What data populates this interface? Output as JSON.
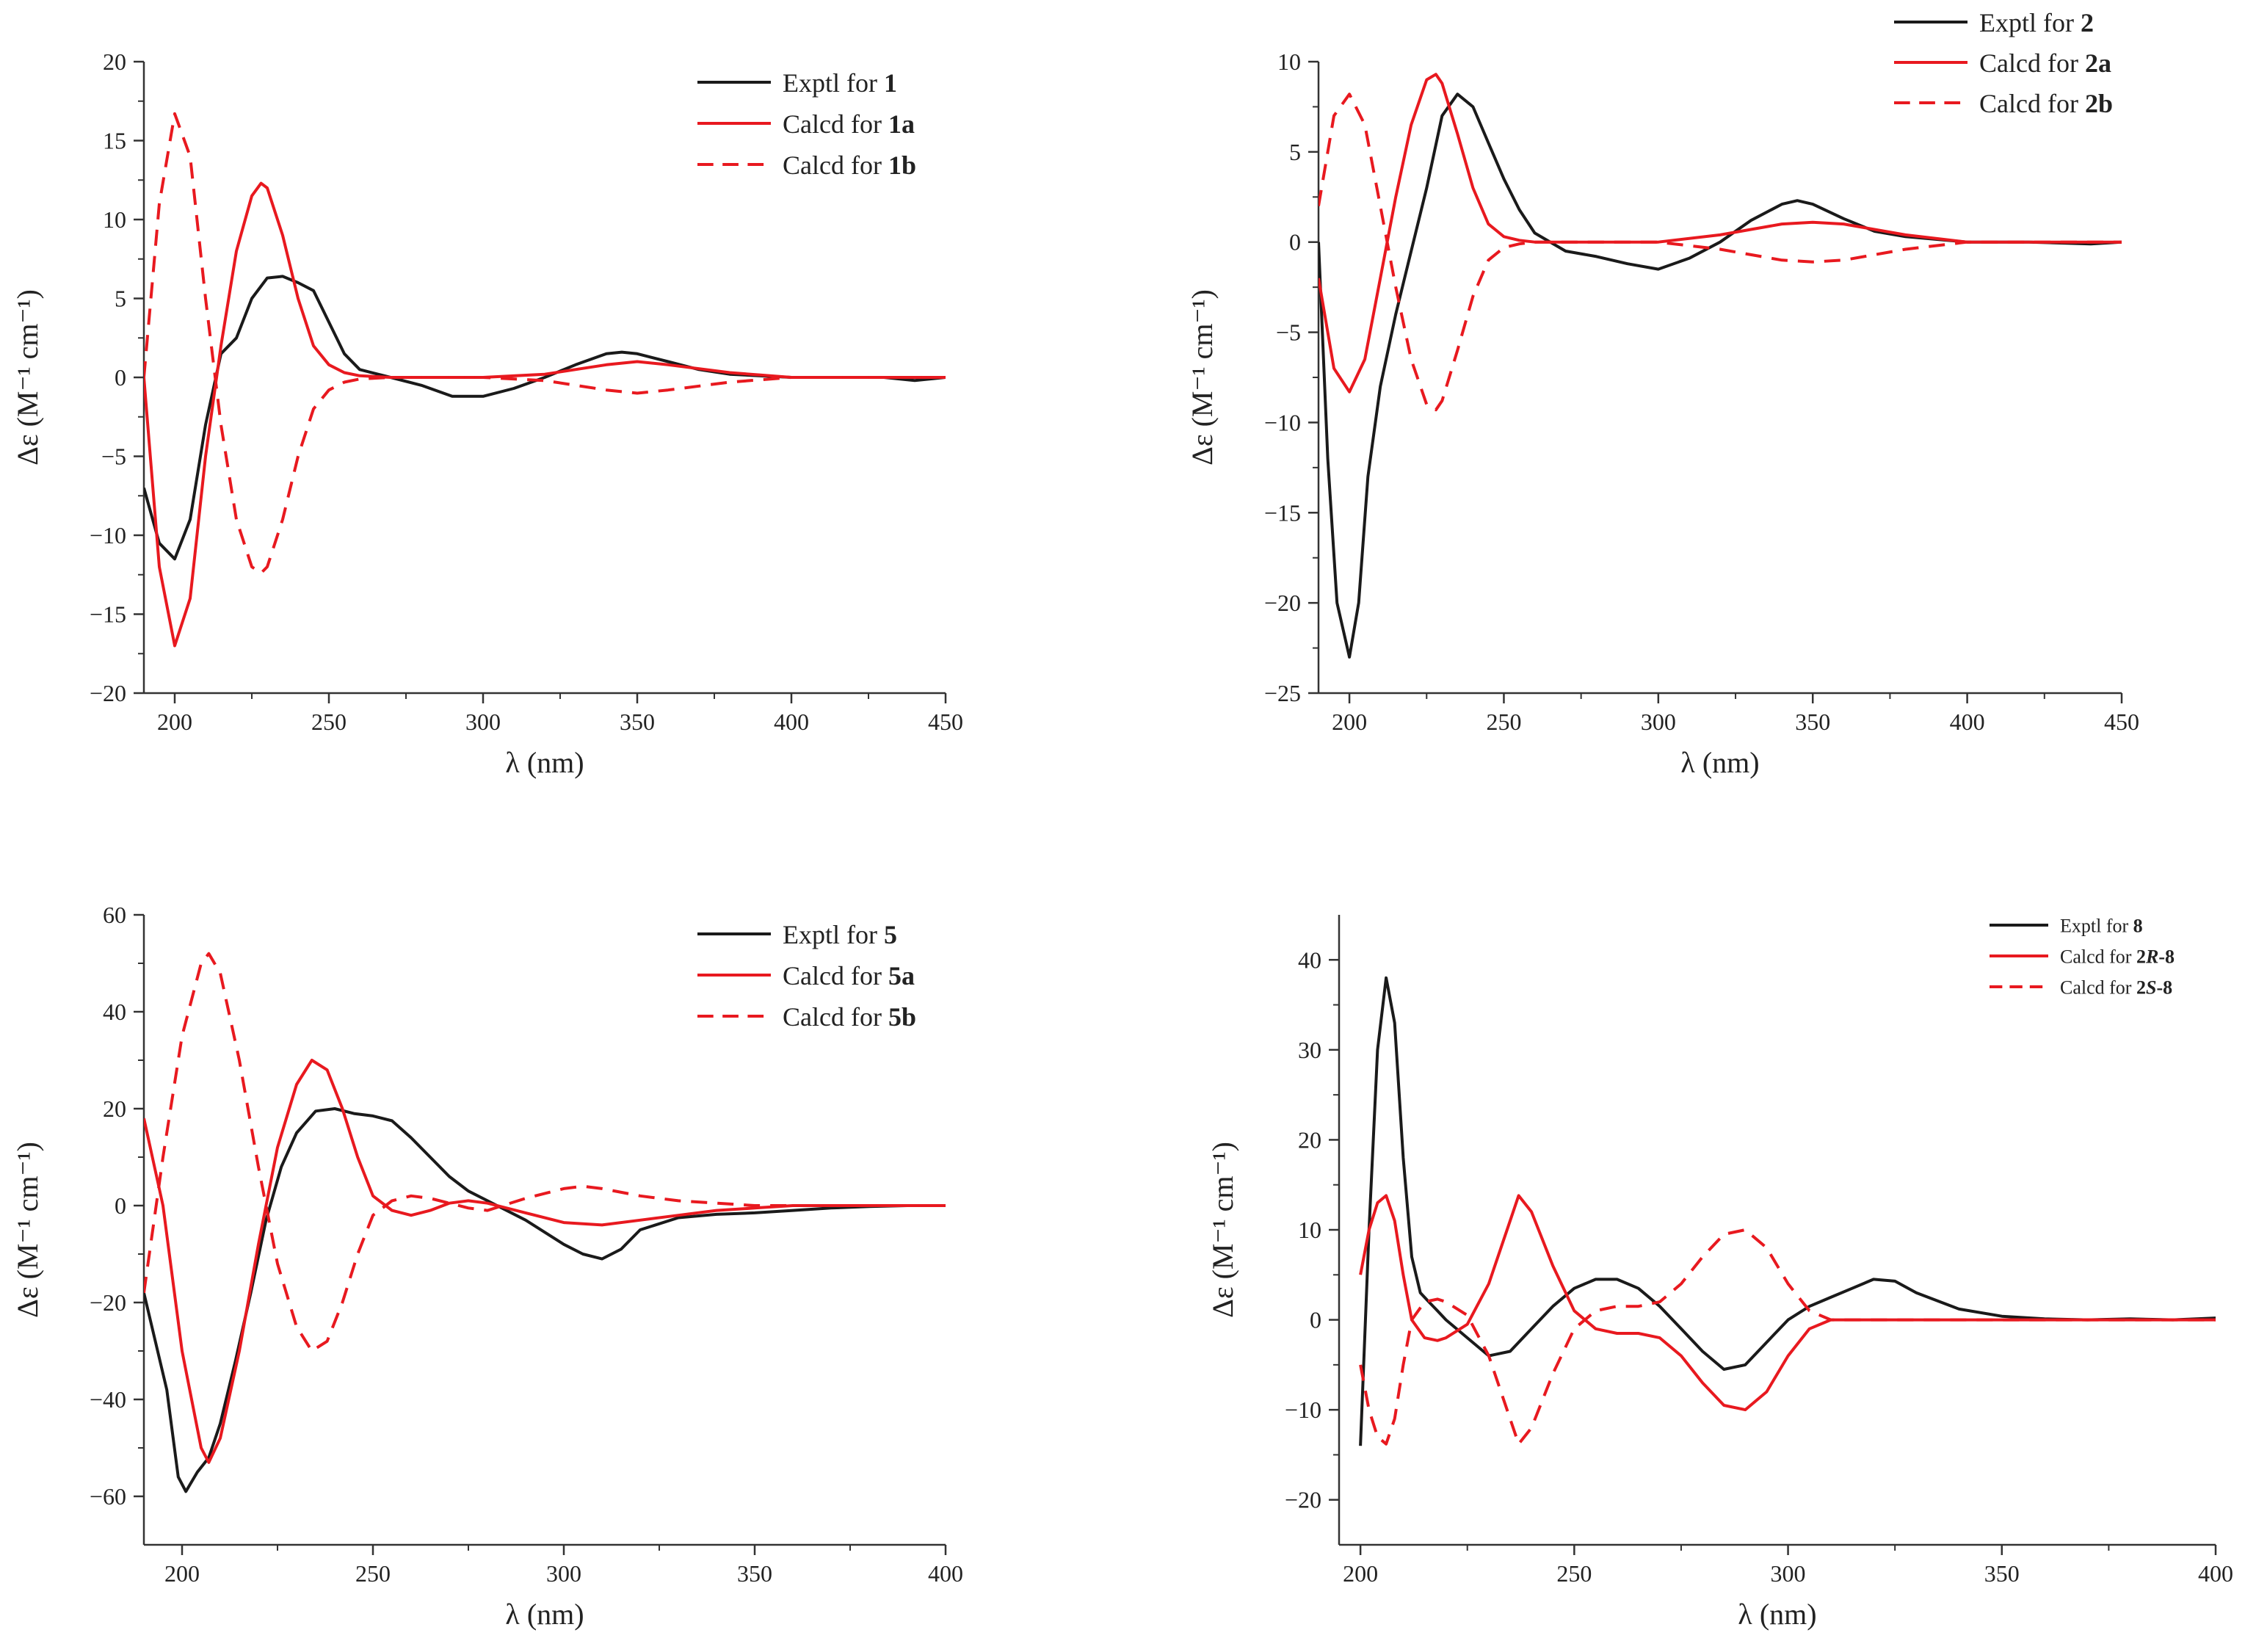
{
  "colors": {
    "exptl": "#1a1a1a",
    "calcd": "#e8191f",
    "axis": "#333333"
  },
  "chart_data": [
    {
      "type": "line",
      "xlabel": "λ (nm)",
      "ylabel": "Δε (M⁻¹ cm⁻¹)",
      "xlim": [
        190,
        450
      ],
      "ylim": [
        -20,
        20
      ],
      "xticks": [
        200,
        250,
        300,
        350,
        400,
        450
      ],
      "yticks": [
        -20,
        -15,
        -10,
        -5,
        0,
        5,
        10,
        15,
        20
      ],
      "legend_position": "top-right",
      "series": [
        {
          "name": "Exptl for ",
          "name_bold": "1",
          "style": "solid",
          "color": "exptl",
          "x": [
            190,
            195,
            200,
            205,
            210,
            215,
            220,
            225,
            230,
            235,
            240,
            245,
            250,
            255,
            260,
            270,
            280,
            290,
            300,
            310,
            320,
            330,
            340,
            345,
            350,
            360,
            370,
            380,
            400,
            420,
            430,
            440,
            450
          ],
          "y": [
            -7,
            -10.5,
            -11.5,
            -9,
            -3,
            1.5,
            2.5,
            5,
            6.3,
            6.4,
            6,
            5.5,
            3.5,
            1.5,
            0.5,
            0,
            -0.5,
            -1.2,
            -1.2,
            -0.7,
            0,
            0.8,
            1.5,
            1.6,
            1.5,
            1,
            0.5,
            0.2,
            0,
            0,
            0,
            -0.2,
            0
          ]
        },
        {
          "name": "Calcd for ",
          "name_bold": "1a",
          "style": "solid",
          "color": "calcd",
          "x": [
            190,
            195,
            200,
            205,
            210,
            215,
            220,
            225,
            228,
            230,
            235,
            240,
            245,
            250,
            255,
            260,
            270,
            280,
            300,
            320,
            340,
            350,
            360,
            380,
            400,
            420,
            450
          ],
          "y": [
            0,
            -12,
            -17,
            -14,
            -5,
            2,
            8,
            11.5,
            12.3,
            12,
            9,
            5,
            2,
            0.8,
            0.3,
            0.1,
            0,
            0,
            0,
            0.2,
            0.8,
            1,
            0.8,
            0.3,
            0,
            0,
            0
          ]
        },
        {
          "name": "Calcd for ",
          "name_bold": "1b",
          "style": "dashed",
          "color": "calcd",
          "x": [
            190,
            195,
            200,
            205,
            210,
            215,
            220,
            225,
            228,
            230,
            235,
            240,
            245,
            250,
            255,
            260,
            270,
            280,
            300,
            320,
            340,
            350,
            360,
            380,
            400,
            420,
            450
          ],
          "y": [
            0,
            11,
            16.7,
            14,
            5,
            -3,
            -9,
            -12,
            -12.4,
            -12,
            -9,
            -5,
            -2,
            -0.8,
            -0.3,
            -0.1,
            0,
            0,
            0,
            -0.2,
            -0.8,
            -1,
            -0.8,
            -0.3,
            0,
            0,
            0
          ]
        }
      ]
    },
    {
      "type": "line",
      "xlabel": "λ (nm)",
      "ylabel": "Δε (M⁻¹ cm⁻¹)",
      "xlim": [
        190,
        450
      ],
      "ylim": [
        -25,
        10
      ],
      "xticks": [
        200,
        250,
        300,
        350,
        400,
        450
      ],
      "yticks": [
        -25,
        -20,
        -15,
        -10,
        -5,
        0,
        5,
        10
      ],
      "legend_position": "top-right",
      "series": [
        {
          "name": "Exptl for ",
          "name_bold": "2",
          "style": "solid",
          "color": "exptl",
          "x": [
            190,
            193,
            196,
            200,
            203,
            206,
            210,
            215,
            220,
            225,
            230,
            235,
            240,
            245,
            250,
            255,
            260,
            270,
            280,
            290,
            300,
            310,
            320,
            330,
            340,
            345,
            350,
            360,
            370,
            380,
            400,
            420,
            440,
            450
          ],
          "y": [
            0,
            -12,
            -20,
            -23,
            -20,
            -13,
            -8,
            -4,
            -0.5,
            3,
            7,
            8.2,
            7.5,
            5.5,
            3.5,
            1.8,
            0.5,
            -0.5,
            -0.8,
            -1.2,
            -1.5,
            -0.9,
            0,
            1.2,
            2.1,
            2.3,
            2.1,
            1.3,
            0.6,
            0.3,
            0,
            0,
            -0.1,
            0
          ]
        },
        {
          "name": "Calcd for ",
          "name_bold": "2a",
          "style": "solid",
          "color": "calcd",
          "x": [
            190,
            195,
            200,
            205,
            210,
            215,
            220,
            225,
            228,
            230,
            235,
            240,
            245,
            250,
            255,
            260,
            270,
            280,
            300,
            320,
            340,
            350,
            360,
            380,
            400,
            420,
            450
          ],
          "y": [
            -2,
            -7,
            -8.3,
            -6.5,
            -2,
            2.5,
            6.5,
            9,
            9.3,
            8.8,
            6,
            3,
            1,
            0.3,
            0.1,
            0,
            0,
            0,
            0,
            0.4,
            1,
            1.1,
            1,
            0.4,
            0,
            0,
            0
          ]
        },
        {
          "name": "Calcd for ",
          "name_bold": "2b",
          "style": "dashed",
          "color": "calcd",
          "x": [
            190,
            195,
            200,
            205,
            210,
            215,
            220,
            225,
            228,
            230,
            235,
            240,
            245,
            250,
            255,
            260,
            270,
            280,
            300,
            320,
            340,
            350,
            360,
            380,
            400,
            420,
            450
          ],
          "y": [
            2,
            7,
            8.2,
            6.5,
            2,
            -2.5,
            -6.5,
            -9,
            -9.3,
            -8.8,
            -6,
            -3,
            -1,
            -0.3,
            -0.1,
            0,
            0,
            0,
            0,
            -0.4,
            -1,
            -1.1,
            -1,
            -0.4,
            0,
            0,
            0
          ]
        }
      ]
    },
    {
      "type": "line",
      "xlabel": "λ (nm)",
      "ylabel": "Δε (M⁻¹ cm⁻¹)",
      "xlim": [
        190,
        400
      ],
      "ylim": [
        -70,
        60
      ],
      "xticks": [
        200,
        250,
        300,
        350,
        400
      ],
      "yticks": [
        -60,
        -40,
        -20,
        0,
        20,
        40,
        60
      ],
      "legend_position": "top-right",
      "series": [
        {
          "name": "Exptl for ",
          "name_bold": "5",
          "style": "solid",
          "color": "exptl",
          "x": [
            190,
            193,
            196,
            199,
            201,
            204,
            207,
            210,
            214,
            218,
            222,
            226,
            230,
            235,
            240,
            245,
            250,
            255,
            260,
            265,
            270,
            275,
            280,
            290,
            300,
            305,
            310,
            315,
            320,
            330,
            340,
            350,
            360,
            370,
            380,
            390,
            400
          ],
          "y": [
            -18,
            -28,
            -38,
            -56,
            -59,
            -55,
            -52,
            -45,
            -32,
            -18,
            -3,
            8,
            15,
            19.5,
            20,
            19,
            18.5,
            17.5,
            14,
            10,
            6,
            3,
            1,
            -3,
            -8,
            -10,
            -11,
            -9,
            -5,
            -2.5,
            -1.8,
            -1.5,
            -1,
            -0.5,
            -0.2,
            0,
            0
          ]
        },
        {
          "name": "Calcd for ",
          "name_bold": "5a",
          "style": "solid",
          "color": "calcd",
          "x": [
            190,
            195,
            200,
            205,
            207,
            210,
            215,
            220,
            225,
            230,
            234,
            238,
            242,
            246,
            250,
            255,
            260,
            265,
            270,
            275,
            280,
            290,
            300,
            310,
            320,
            330,
            340,
            350,
            360,
            380,
            400
          ],
          "y": [
            18,
            0,
            -30,
            -50,
            -53,
            -48,
            -30,
            -8,
            12,
            25,
            30,
            28,
            20,
            10,
            2,
            -1,
            -2,
            -1,
            0.5,
            1,
            0.5,
            -1.5,
            -3.5,
            -4,
            -3,
            -2,
            -1,
            -0.5,
            0,
            0,
            0
          ]
        },
        {
          "name": "Calcd for ",
          "name_bold": "5b",
          "style": "dashed",
          "color": "calcd",
          "x": [
            190,
            195,
            200,
            205,
            207,
            210,
            215,
            220,
            225,
            230,
            234,
            238,
            242,
            246,
            250,
            255,
            260,
            265,
            270,
            275,
            280,
            290,
            300,
            305,
            310,
            320,
            330,
            340,
            350,
            360,
            380,
            400
          ],
          "y": [
            -18,
            10,
            35,
            50,
            52,
            48,
            30,
            8,
            -12,
            -25,
            -30,
            -28,
            -20,
            -10,
            -2,
            1,
            2,
            1.5,
            0.5,
            -0.5,
            -1,
            1.5,
            3.5,
            4,
            3.5,
            2,
            1,
            0.5,
            0,
            0,
            0,
            0
          ]
        }
      ]
    },
    {
      "type": "line",
      "xlabel": "λ (nm)",
      "ylabel": "Δε (M⁻¹ cm⁻¹)",
      "xlim": [
        195,
        400
      ],
      "ylim": [
        -25,
        45
      ],
      "xticks": [
        200,
        250,
        300,
        350,
        400
      ],
      "yticks": [
        -20,
        -10,
        0,
        10,
        20,
        30,
        40
      ],
      "legend_position": "top-right",
      "series": [
        {
          "name": "Exptl for ",
          "name_bold": "8",
          "style": "solid",
          "color": "exptl",
          "x": [
            200,
            202,
            204,
            206,
            208,
            210,
            212,
            214,
            216,
            218,
            220,
            225,
            230,
            235,
            240,
            245,
            250,
            255,
            260,
            265,
            270,
            275,
            280,
            285,
            290,
            295,
            300,
            305,
            310,
            315,
            320,
            325,
            330,
            340,
            350,
            360,
            370,
            380,
            390,
            400
          ],
          "y": [
            -14,
            10,
            30,
            38,
            33,
            18,
            7,
            3,
            2,
            1,
            0,
            -2,
            -4,
            -3.5,
            -1,
            1.5,
            3.5,
            4.5,
            4.5,
            3.5,
            1.5,
            -1,
            -3.5,
            -5.5,
            -5,
            -2.5,
            0,
            1.5,
            2.5,
            3.5,
            4.5,
            4.3,
            3,
            1.2,
            0.4,
            0.1,
            0,
            0.1,
            0,
            0.2
          ]
        },
        {
          "name": "Calcd for ",
          "name_bold": "2R-8",
          "name_bold_italic": "R",
          "style": "solid",
          "color": "calcd",
          "x": [
            200,
            202,
            204,
            206,
            208,
            210,
            212,
            215,
            218,
            220,
            225,
            230,
            235,
            237,
            240,
            245,
            250,
            255,
            260,
            265,
            270,
            275,
            280,
            285,
            290,
            295,
            300,
            305,
            310,
            320,
            330,
            350,
            370,
            400
          ],
          "y": [
            5,
            10,
            13,
            13.8,
            11,
            5,
            0,
            -2,
            -2.3,
            -2,
            -0.5,
            4,
            11,
            13.8,
            12,
            6,
            1,
            -1,
            -1.5,
            -1.5,
            -2,
            -4,
            -7,
            -9.5,
            -10,
            -8,
            -4,
            -1,
            0,
            0,
            0,
            0,
            0,
            0
          ]
        },
        {
          "name": "Calcd for ",
          "name_bold": "2S-8",
          "name_bold_italic": "S",
          "style": "dashed",
          "color": "calcd",
          "x": [
            200,
            202,
            204,
            206,
            208,
            210,
            212,
            215,
            218,
            220,
            225,
            230,
            235,
            237,
            240,
            245,
            250,
            255,
            260,
            265,
            270,
            275,
            280,
            285,
            290,
            295,
            300,
            305,
            310,
            320,
            330,
            350,
            370,
            400
          ],
          "y": [
            -5,
            -10,
            -13,
            -13.8,
            -11,
            -5,
            0,
            2,
            2.3,
            2,
            0.5,
            -4,
            -11,
            -13.8,
            -12,
            -6,
            -1,
            1,
            1.5,
            1.5,
            2,
            4,
            7,
            9.5,
            10,
            8,
            4,
            1,
            0,
            0,
            0,
            0,
            0,
            0
          ]
        }
      ]
    }
  ]
}
